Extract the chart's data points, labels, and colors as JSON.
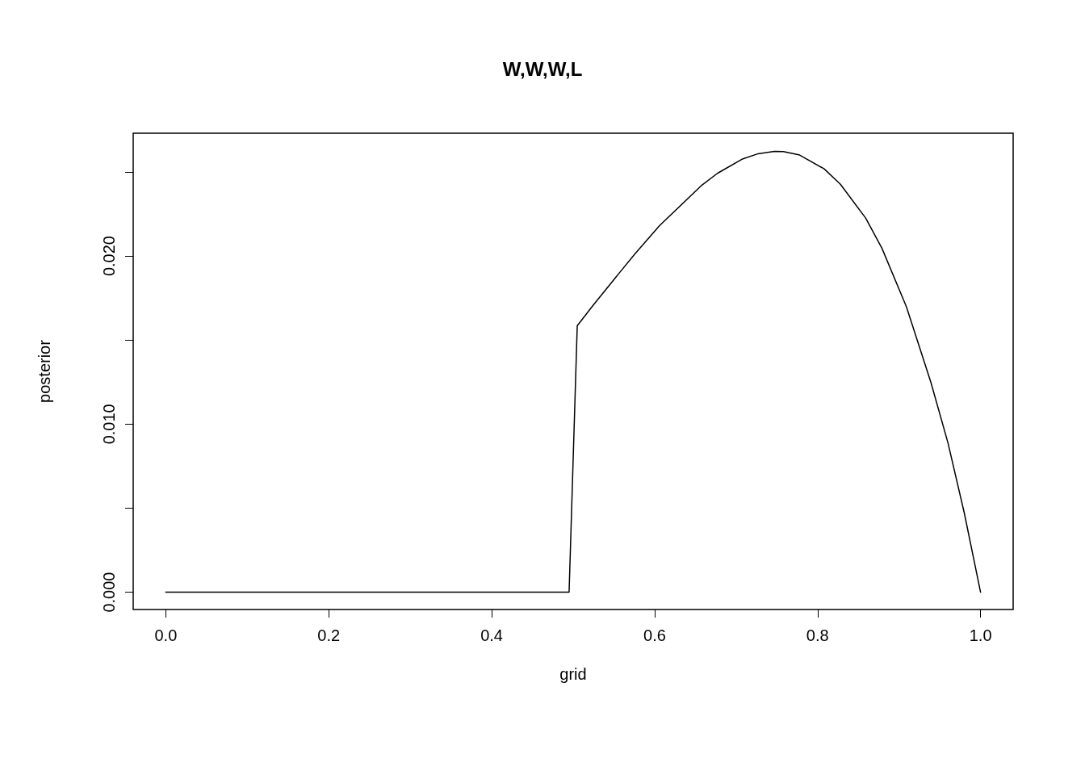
{
  "chart_data": {
    "type": "line",
    "title": "W,W,W,L",
    "xlabel": "grid",
    "ylabel": "posterior",
    "series": [
      {
        "color": "#000000",
        "x": [
          0,
          0.495,
          0.505,
          0.525,
          0.556,
          0.576,
          0.606,
          0.657,
          0.677,
          0.707,
          0.727,
          0.747,
          0.758,
          0.778,
          0.808,
          0.828,
          0.859,
          0.879,
          0.909,
          0.939,
          0.96,
          0.98,
          1
        ],
        "values": [
          0,
          0,
          0.01585,
          0.0171,
          0.01895,
          0.02013,
          0.0218,
          0.02417,
          0.02491,
          0.02575,
          0.02608,
          0.02622,
          0.02621,
          0.026,
          0.02518,
          0.02426,
          0.02225,
          0.02045,
          0.01698,
          0.01249,
          0.00888,
          0.00472,
          0
        ]
      }
    ],
    "xlim": [
      -0.04,
      1.04
    ],
    "ylim": [
      -0.00103,
      0.0273
    ],
    "xticks": [
      {
        "value": 0,
        "label": "0.0"
      },
      {
        "value": 0.2,
        "label": "0.2"
      },
      {
        "value": 0.4,
        "label": "0.4"
      },
      {
        "value": 0.6,
        "label": "0.6"
      },
      {
        "value": 0.8,
        "label": "0.8"
      },
      {
        "value": 1,
        "label": "1.0"
      }
    ],
    "yticks": [
      {
        "value": 0,
        "label": "0.000"
      },
      {
        "value": 0.005,
        "label": null
      },
      {
        "value": 0.01,
        "label": "0.010"
      },
      {
        "value": 0.015,
        "label": null
      },
      {
        "value": 0.02,
        "label": "0.020"
      },
      {
        "value": 0.025,
        "label": null
      }
    ],
    "grid": false,
    "marker": "none",
    "line_style": "solid"
  }
}
